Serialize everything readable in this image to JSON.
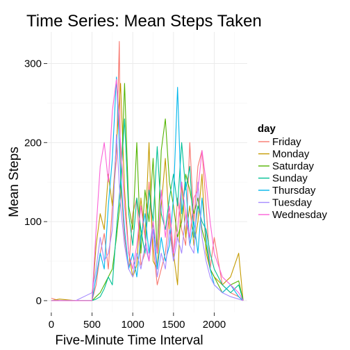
{
  "chart_data": {
    "type": "line",
    "title": "Time Series: Mean Steps Taken",
    "xlabel": "Five-Minute Time Interval",
    "ylabel": "Mean Steps",
    "xlim": [
      -50,
      2405
    ],
    "ylim": [
      -15,
      340
    ],
    "x_ticks": [
      0,
      500,
      1000,
      1500,
      2000
    ],
    "y_ticks": [
      0,
      100,
      200,
      300
    ],
    "grid": true,
    "legend": {
      "title": "day",
      "position": "right"
    },
    "series": [
      {
        "name": "Friday",
        "color": "#F8766D",
        "x": [
          0,
          100,
          300,
          500,
          550,
          600,
          650,
          700,
          750,
          800,
          835,
          850,
          900,
          950,
          1000,
          1050,
          1100,
          1150,
          1200,
          1250,
          1300,
          1350,
          1400,
          1450,
          1500,
          1550,
          1600,
          1650,
          1700,
          1750,
          1800,
          1850,
          1900,
          1950,
          2000,
          2100,
          2200,
          2300,
          2355
        ],
        "values": [
          3,
          0,
          0,
          0,
          20,
          60,
          85,
          40,
          120,
          180,
          328,
          150,
          80,
          40,
          110,
          130,
          45,
          60,
          150,
          70,
          20,
          40,
          60,
          110,
          55,
          130,
          90,
          70,
          200,
          100,
          170,
          190,
          120,
          40,
          80,
          20,
          10,
          5,
          0
        ]
      },
      {
        "name": "Monday",
        "color": "#C49A00",
        "x": [
          0,
          100,
          300,
          500,
          550,
          600,
          650,
          700,
          750,
          800,
          850,
          900,
          950,
          1000,
          1050,
          1100,
          1150,
          1200,
          1250,
          1300,
          1350,
          1400,
          1450,
          1500,
          1550,
          1600,
          1650,
          1700,
          1750,
          1800,
          1850,
          1900,
          1950,
          2000,
          2100,
          2200,
          2300,
          2355
        ],
        "values": [
          0,
          2,
          0,
          0,
          70,
          110,
          90,
          160,
          120,
          200,
          275,
          140,
          60,
          30,
          45,
          130,
          80,
          200,
          50,
          40,
          120,
          180,
          90,
          60,
          20,
          150,
          80,
          120,
          70,
          100,
          160,
          60,
          40,
          30,
          20,
          30,
          60,
          0
        ]
      },
      {
        "name": "Saturday",
        "color": "#53B400",
        "x": [
          0,
          100,
          300,
          500,
          550,
          600,
          650,
          700,
          750,
          800,
          850,
          900,
          950,
          1000,
          1050,
          1100,
          1150,
          1200,
          1250,
          1300,
          1350,
          1400,
          1450,
          1500,
          1550,
          1600,
          1650,
          1700,
          1750,
          1800,
          1850,
          1900,
          1950,
          2000,
          2100,
          2200,
          2300,
          2355
        ],
        "values": [
          0,
          0,
          0,
          0,
          5,
          10,
          20,
          30,
          40,
          80,
          130,
          275,
          120,
          90,
          200,
          60,
          140,
          100,
          180,
          60,
          190,
          230,
          150,
          120,
          80,
          100,
          160,
          140,
          110,
          130,
          90,
          70,
          40,
          30,
          10,
          20,
          25,
          0
        ]
      },
      {
        "name": "Sunday",
        "color": "#00C094",
        "x": [
          0,
          100,
          300,
          500,
          550,
          600,
          650,
          700,
          750,
          800,
          850,
          900,
          950,
          1000,
          1050,
          1100,
          1150,
          1200,
          1250,
          1300,
          1350,
          1400,
          1450,
          1500,
          1550,
          1600,
          1650,
          1700,
          1750,
          1800,
          1850,
          1900,
          1950,
          2000,
          2100,
          2200,
          2300,
          2355
        ],
        "values": [
          0,
          0,
          0,
          0,
          2,
          5,
          15,
          30,
          20,
          90,
          150,
          230,
          110,
          70,
          130,
          90,
          60,
          140,
          100,
          195,
          110,
          90,
          130,
          160,
          120,
          200,
          140,
          170,
          80,
          120,
          100,
          90,
          60,
          40,
          20,
          10,
          20,
          0
        ]
      },
      {
        "name": "Thursday",
        "color": "#00B6EB",
        "x": [
          0,
          100,
          300,
          500,
          550,
          600,
          650,
          700,
          750,
          800,
          850,
          900,
          950,
          1000,
          1050,
          1100,
          1150,
          1200,
          1250,
          1300,
          1350,
          1400,
          1450,
          1500,
          1550,
          1600,
          1650,
          1700,
          1750,
          1800,
          1850,
          1900,
          1950,
          2000,
          2100,
          2200,
          2300,
          2355
        ],
        "values": [
          0,
          0,
          0,
          0,
          30,
          60,
          40,
          120,
          180,
          283,
          160,
          90,
          40,
          60,
          30,
          80,
          110,
          60,
          100,
          40,
          80,
          50,
          70,
          130,
          270,
          110,
          150,
          70,
          100,
          60,
          130,
          80,
          40,
          20,
          10,
          20,
          5,
          0
        ]
      },
      {
        "name": "Tuesday",
        "color": "#A58AFF",
        "x": [
          0,
          100,
          300,
          500,
          550,
          600,
          650,
          700,
          750,
          800,
          850,
          900,
          950,
          1000,
          1050,
          1100,
          1150,
          1200,
          1250,
          1300,
          1350,
          1400,
          1450,
          1500,
          1550,
          1600,
          1650,
          1700,
          1750,
          1800,
          1850,
          1900,
          1950,
          2000,
          2100,
          2200,
          2300,
          2355
        ],
        "values": [
          0,
          0,
          0,
          10,
          40,
          80,
          50,
          60,
          90,
          210,
          120,
          70,
          40,
          30,
          60,
          40,
          70,
          50,
          90,
          30,
          60,
          40,
          90,
          50,
          80,
          60,
          110,
          70,
          60,
          150,
          80,
          50,
          30,
          20,
          10,
          5,
          2,
          0
        ]
      },
      {
        "name": "Wednesday",
        "color": "#FB61D7",
        "x": [
          0,
          100,
          300,
          500,
          550,
          600,
          650,
          700,
          750,
          800,
          850,
          900,
          950,
          1000,
          1050,
          1100,
          1150,
          1200,
          1250,
          1300,
          1350,
          1400,
          1450,
          1500,
          1550,
          1600,
          1650,
          1700,
          1750,
          1800,
          1850,
          1900,
          1950,
          2000,
          2100,
          2200,
          2300,
          2355
        ],
        "values": [
          0,
          0,
          0,
          0,
          90,
          170,
          200,
          150,
          240,
          280,
          200,
          120,
          60,
          40,
          70,
          120,
          80,
          50,
          100,
          60,
          140,
          80,
          120,
          60,
          90,
          150,
          110,
          80,
          130,
          140,
          190,
          150,
          100,
          60,
          30,
          20,
          10,
          0
        ]
      }
    ]
  }
}
